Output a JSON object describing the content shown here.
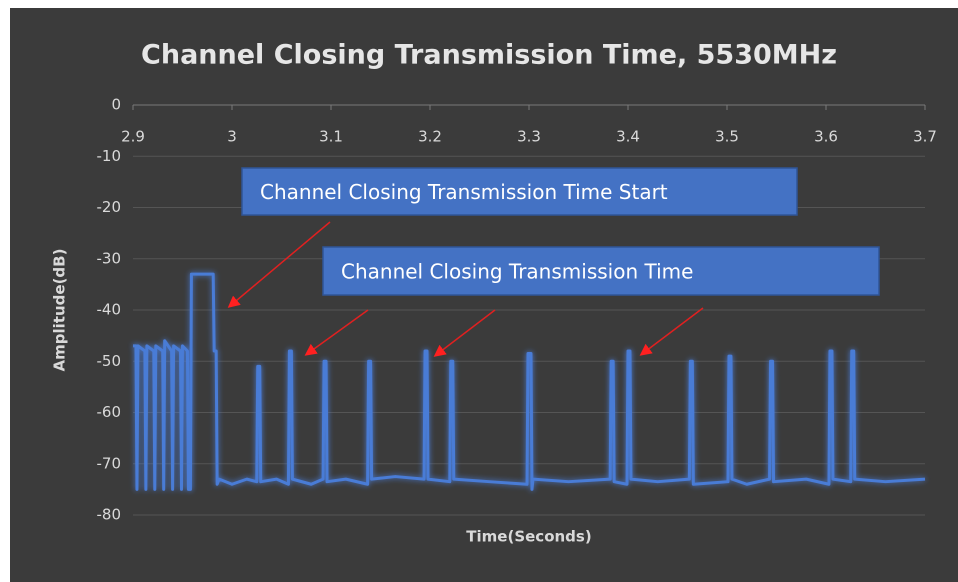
{
  "chart_data": {
    "type": "line",
    "title": "Channel Closing Transmission Time, 5530MHz",
    "x_label": "Time(Seconds)",
    "y_label": "Amplitude(dB)",
    "xlim": [
      2.9,
      3.7
    ],
    "xticks": [
      2.9,
      3,
      3.1,
      3.2,
      3.3,
      3.4,
      3.5,
      3.6,
      3.7
    ],
    "ylim": [
      -80,
      0
    ],
    "yticks": [
      0,
      -10,
      -20,
      -30,
      -40,
      -50,
      -60,
      -70,
      -80
    ],
    "grid": true,
    "annotations": [
      {
        "text": "Channel Closing Transmission Time Start"
      },
      {
        "text": "Channel Closing Transmission Time"
      }
    ],
    "x": [
      2.9,
      2.903,
      2.904,
      2.905,
      2.912,
      2.913,
      2.914,
      2.921,
      2.922,
      2.923,
      2.93,
      2.931,
      2.932,
      2.939,
      2.94,
      2.941,
      2.948,
      2.949,
      2.95,
      2.955,
      2.956,
      2.958,
      2.959,
      2.981,
      2.982,
      2.984,
      2.985,
      2.987,
      3.0,
      3.015,
      3.025,
      3.026,
      3.028,
      3.029,
      3.045,
      3.057,
      3.058,
      3.06,
      3.061,
      3.08,
      3.092,
      3.093,
      3.095,
      3.096,
      3.115,
      3.137,
      3.138,
      3.14,
      3.141,
      3.165,
      3.194,
      3.195,
      3.197,
      3.198,
      3.22,
      3.221,
      3.223,
      3.224,
      3.26,
      3.298,
      3.299,
      3.302,
      3.303,
      3.304,
      3.34,
      3.382,
      3.383,
      3.385,
      3.386,
      3.399,
      3.4,
      3.402,
      3.403,
      3.43,
      3.462,
      3.463,
      3.465,
      3.466,
      3.501,
      3.502,
      3.504,
      3.505,
      3.52,
      3.543,
      3.544,
      3.546,
      3.547,
      3.58,
      3.603,
      3.604,
      3.606,
      3.607,
      3.625,
      3.626,
      3.628,
      3.629,
      3.66,
      3.7
    ],
    "series": [
      {
        "color": "#4a7bd6",
        "values": [
          -47,
          -47,
          -75,
          -47,
          -48,
          -75,
          -47,
          -48,
          -75,
          -47,
          -48,
          -75,
          -46,
          -48,
          -75,
          -47,
          -48,
          -75,
          -47,
          -48,
          -75,
          -75,
          -33,
          -33,
          -48,
          -48,
          -74,
          -73,
          -74,
          -73,
          -73.5,
          -51,
          -51,
          -73.5,
          -73,
          -74,
          -48,
          -48,
          -73,
          -74,
          -73,
          -50,
          -50,
          -73.5,
          -73,
          -74,
          -50,
          -50,
          -73,
          -72.5,
          -73,
          -48,
          -48,
          -73,
          -73.5,
          -50,
          -50,
          -73,
          -73.5,
          -74,
          -48.5,
          -48.5,
          -75,
          -73,
          -73.5,
          -73,
          -50,
          -50,
          -73.5,
          -74,
          -48,
          -48,
          -73,
          -73.5,
          -73,
          -50,
          -50,
          -74,
          -73.5,
          -49,
          -49,
          -73,
          -74,
          -73,
          -50,
          -50,
          -73.5,
          -73,
          -74,
          -48,
          -48,
          -73,
          -73.5,
          -48,
          -48,
          -73,
          -73.5,
          -73
        ]
      }
    ]
  }
}
